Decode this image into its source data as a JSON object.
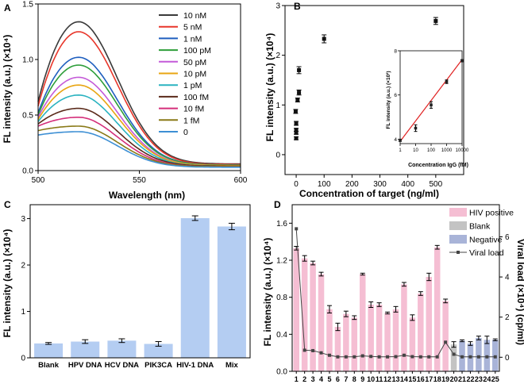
{
  "figure": {
    "panel_letters": [
      "A",
      "B",
      "C",
      "D"
    ]
  },
  "chart_data": [
    {
      "panel": "A",
      "type": "line",
      "xlabel": "Wavelength (nm)",
      "ylabel": "FL intensity (a.u.) (×10⁴)",
      "xlim": [
        500,
        600
      ],
      "ylim": [
        0,
        1.5
      ],
      "xticks": [
        "500",
        "550",
        "600"
      ],
      "yticks": [
        "0.0",
        "0.5",
        "1.0",
        "1.5"
      ],
      "peak_wavelength": 520,
      "x_start": 500,
      "x_end": 600,
      "series": [
        {
          "name": "10 nM",
          "color": "#3a3a3a",
          "peak": 1.34,
          "start": 0.62,
          "end": 0.06
        },
        {
          "name": "5 nM",
          "color": "#e8362a",
          "peak": 1.25,
          "start": 0.58,
          "end": 0.055
        },
        {
          "name": "1 nM",
          "color": "#1f5fbf",
          "peak": 1.02,
          "start": 0.52,
          "end": 0.05
        },
        {
          "name": "100 pM",
          "color": "#2e9e3a",
          "peak": 0.95,
          "start": 0.5,
          "end": 0.05
        },
        {
          "name": "50 pM",
          "color": "#c45ad8",
          "peak": 0.84,
          "start": 0.48,
          "end": 0.045
        },
        {
          "name": "10 pM",
          "color": "#e8a512",
          "peak": 0.77,
          "start": 0.46,
          "end": 0.045
        },
        {
          "name": "1 pM",
          "color": "#2bb3c0",
          "peak": 0.68,
          "start": 0.44,
          "end": 0.04
        },
        {
          "name": "100 fM",
          "color": "#5a2a1a",
          "peak": 0.56,
          "start": 0.42,
          "end": 0.04
        },
        {
          "name": "10 fM",
          "color": "#d42f7a",
          "peak": 0.48,
          "start": 0.4,
          "end": 0.035
        },
        {
          "name": "1 fM",
          "color": "#8a7a18",
          "peak": 0.4,
          "start": 0.36,
          "end": 0.035
        },
        {
          "name": "0",
          "color": "#3d8fd4",
          "peak": 0.35,
          "start": 0.32,
          "end": 0.03
        }
      ]
    },
    {
      "panel": "B",
      "type": "scatter",
      "xlabel": "Concentration of target (ng/ml)",
      "ylabel": "FL intensity (a.u.) (×10⁴)",
      "xlim": [
        -40,
        600
      ],
      "ylim": [
        -0.4,
        3.0
      ],
      "xticks": [
        "0",
        "100",
        "200",
        "300",
        "400",
        "500"
      ],
      "yticks": [
        "0",
        "1",
        "2",
        "3"
      ],
      "points": [
        {
          "x": 0,
          "y": 0.33,
          "err": 0.03
        },
        {
          "x": 0,
          "y": 0.44,
          "err": 0.03
        },
        {
          "x": 0,
          "y": 0.5,
          "err": 0.03
        },
        {
          "x": 0,
          "y": 0.63,
          "err": 0.04
        },
        {
          "x": 1,
          "y": 0.87,
          "err": 0.04
        },
        {
          "x": 5,
          "y": 1.1,
          "err": 0.04
        },
        {
          "x": 10,
          "y": 1.25,
          "err": 0.05
        },
        {
          "x": 10,
          "y": 1.7,
          "err": 0.07
        },
        {
          "x": 100,
          "y": 2.33,
          "err": 0.08
        },
        {
          "x": 500,
          "y": 2.69,
          "err": 0.07
        }
      ],
      "inset": {
        "type": "scatter",
        "xscale": "log",
        "xlabel": "Concentration IgG (fM)",
        "ylabel": "FL intensity (a.u.) (×10³)",
        "xlim": [
          1,
          10000
        ],
        "ylim": [
          3.8,
          8
        ],
        "xticks": [
          "1",
          "10",
          "100",
          "1000",
          "10000"
        ],
        "yticks": [
          "4",
          "6",
          "8"
        ],
        "points": [
          {
            "x": 1,
            "y": 3.95,
            "err": 0.05
          },
          {
            "x": 10,
            "y": 4.5,
            "err": 0.15
          },
          {
            "x": 100,
            "y": 5.55,
            "err": 0.15
          },
          {
            "x": 1000,
            "y": 6.6,
            "err": 0.08
          },
          {
            "x": 10000,
            "y": 7.55,
            "err": 0.05
          }
        ],
        "fit": {
          "x": [
            1,
            10000
          ],
          "y": [
            3.9,
            7.6
          ],
          "color": "#e02020"
        }
      }
    },
    {
      "panel": "C",
      "type": "bar",
      "ylabel": "FL intensity (a.u.) (×10⁴)",
      "ylim": [
        0,
        3.3
      ],
      "yticks": [
        "0",
        "1",
        "2",
        "3"
      ],
      "categories": [
        "Blank",
        "HPV DNA",
        "HCV DNA",
        "PIK3CA",
        "HIV-1 DNA",
        "Mix"
      ],
      "values": [
        0.31,
        0.35,
        0.37,
        0.3,
        3.01,
        2.83
      ],
      "errors": [
        0.02,
        0.04,
        0.04,
        0.05,
        0.05,
        0.07
      ],
      "color": "#b4cdf2"
    },
    {
      "panel": "D",
      "type": "bar",
      "ylabel": "FL intensity (a.u.) (×10⁴)",
      "y2label": "Viral load (×10⁴) (cp/ml)",
      "ylim": [
        0,
        1.8
      ],
      "yticks": [
        "0.0",
        "0.4",
        "0.8",
        "1.2",
        "1.6"
      ],
      "y2lim": [
        -0.7,
        7.6
      ],
      "y2ticks": [
        "0",
        "2",
        "4",
        "6"
      ],
      "categories": [
        "1",
        "2",
        "3",
        "4",
        "5",
        "6",
        "7",
        "8",
        "9",
        "10",
        "11",
        "12",
        "13",
        "14",
        "15",
        "16",
        "17",
        "18",
        "19",
        "20",
        "21",
        "22",
        "23",
        "24",
        "25"
      ],
      "values": [
        1.33,
        1.22,
        1.17,
        1.05,
        0.67,
        0.48,
        0.62,
        0.58,
        1.05,
        0.72,
        0.72,
        0.63,
        0.67,
        0.94,
        0.58,
        0.84,
        1.02,
        1.34,
        0.76,
        0.29,
        0.33,
        0.3,
        0.36,
        0.34,
        0.34
      ],
      "errors": [
        0.02,
        0.03,
        0.02,
        0.02,
        0.04,
        0.04,
        0.03,
        0.02,
        0.01,
        0.03,
        0.02,
        0.01,
        0.03,
        0.02,
        0.03,
        0.02,
        0.04,
        0.02,
        0.02,
        0.03,
        0.01,
        0.02,
        0.02,
        0.04,
        0.01
      ],
      "groups": [
        "HIV positive",
        "HIV positive",
        "HIV positive",
        "HIV positive",
        "HIV positive",
        "HIV positive",
        "HIV positive",
        "HIV positive",
        "HIV positive",
        "HIV positive",
        "HIV positive",
        "HIV positive",
        "HIV positive",
        "HIV positive",
        "HIV positive",
        "HIV positive",
        "HIV positive",
        "HIV positive",
        "HIV positive",
        "Blank",
        "Negative",
        "Negative",
        "Negative",
        "Negative",
        "Negative"
      ],
      "group_colors": {
        "HIV positive": "#f5bed3",
        "Blank": "#c3c3c3",
        "Negative": "#a9b4d8"
      },
      "viral_load": [
        6.4,
        0.35,
        0.33,
        0.22,
        0.1,
        0.02,
        0.02,
        0.02,
        0.07,
        0.04,
        0.02,
        0.02,
        0.03,
        0.1,
        0.03,
        0.02,
        0.02,
        0.02,
        0.75,
        0.15,
        0.02,
        0.02,
        0.02,
        0.02,
        0.02
      ],
      "legend": [
        "HIV positive",
        "Blank",
        "Negative",
        "Viral load"
      ]
    }
  ]
}
